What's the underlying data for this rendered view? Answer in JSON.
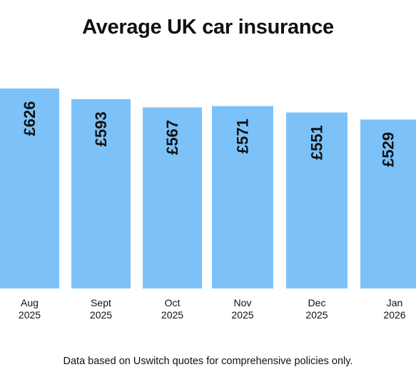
{
  "chart_data": {
    "type": "bar",
    "title": "Average UK car insurance",
    "categories": [
      "Aug 2025",
      "Sept 2025",
      "Oct 2025",
      "Nov 2025",
      "Dec 2025",
      "Jan 2026"
    ],
    "category_lines": [
      [
        "Aug",
        "2025"
      ],
      [
        "Sept",
        "2025"
      ],
      [
        "Oct",
        "2025"
      ],
      [
        "Nov",
        "2025"
      ],
      [
        "Dec",
        "2025"
      ],
      [
        "Jan",
        "2026"
      ]
    ],
    "values": [
      626,
      593,
      567,
      571,
      551,
      529
    ],
    "value_labels": [
      "£626",
      "£593",
      "£567",
      "£571",
      "£551",
      "£529"
    ],
    "xlabel": "",
    "ylabel": "",
    "ylim": [
      0,
      650
    ],
    "grid": false,
    "legend": "none",
    "bar_color": "#7cc2f9",
    "label_color": "#111111"
  },
  "footnote": "Data based on Uswitch quotes for comprehensive policies only."
}
